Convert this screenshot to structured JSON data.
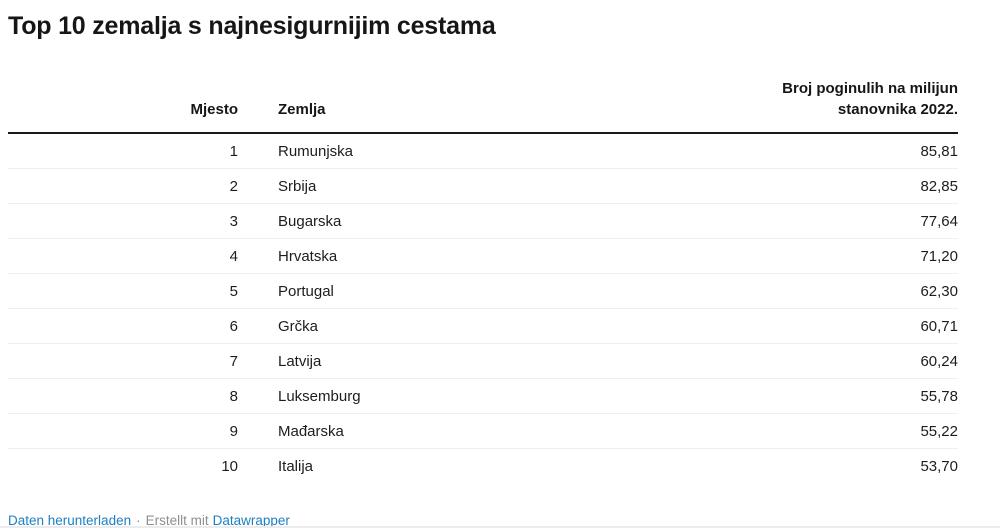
{
  "title": "Top 10 zemalja s najnesigurnijim cestama",
  "table": {
    "columns": [
      {
        "key": "rank",
        "label": "Mjesto"
      },
      {
        "key": "country",
        "label": "Zemlja"
      },
      {
        "key": "value",
        "label": "Broj poginulih na milijun stanovnika 2022."
      }
    ],
    "rows": [
      {
        "rank": "1",
        "country": "Rumunjska",
        "value": "85,81"
      },
      {
        "rank": "2",
        "country": "Srbija",
        "value": "82,85"
      },
      {
        "rank": "3",
        "country": "Bugarska",
        "value": "77,64"
      },
      {
        "rank": "4",
        "country": "Hrvatska",
        "value": "71,20"
      },
      {
        "rank": "5",
        "country": "Portugal",
        "value": "62,30"
      },
      {
        "rank": "6",
        "country": "Grčka",
        "value": "60,71"
      },
      {
        "rank": "7",
        "country": "Latvija",
        "value": "60,24"
      },
      {
        "rank": "8",
        "country": "Luksemburg",
        "value": "55,78"
      },
      {
        "rank": "9",
        "country": "Mađarska",
        "value": "55,22"
      },
      {
        "rank": "10",
        "country": "Italija",
        "value": "53,70"
      }
    ]
  },
  "footer": {
    "download_label": "Daten herunterladen",
    "separator": "·",
    "created_prefix": "Erstellt mit",
    "brand_label": "Datawrapper"
  },
  "colors": {
    "text": "#1d1d1d",
    "link_blue": "#1d80c2",
    "footer_gray": "#8f8f8f",
    "header_rule": "#191919",
    "row_separator": "#efefef"
  },
  "chart_data": {
    "type": "table",
    "title": "Top 10 zemalja s najnesigurnijim cestama",
    "columns": [
      "Mjesto",
      "Zemlja",
      "Broj poginulih na milijun stanovnika 2022."
    ],
    "rows": [
      [
        1,
        "Rumunjska",
        85.81
      ],
      [
        2,
        "Srbija",
        82.85
      ],
      [
        3,
        "Bugarska",
        77.64
      ],
      [
        4,
        "Hrvatska",
        71.2
      ],
      [
        5,
        "Portugal",
        62.3
      ],
      [
        6,
        "Grčka",
        60.71
      ],
      [
        7,
        "Latvija",
        60.24
      ],
      [
        8,
        "Luksemburg",
        55.78
      ],
      [
        9,
        "Mađarska",
        55.22
      ],
      [
        10,
        "Italija",
        53.7
      ]
    ],
    "value_format": "decimal comma, 2 places",
    "sort": "descending by value"
  }
}
